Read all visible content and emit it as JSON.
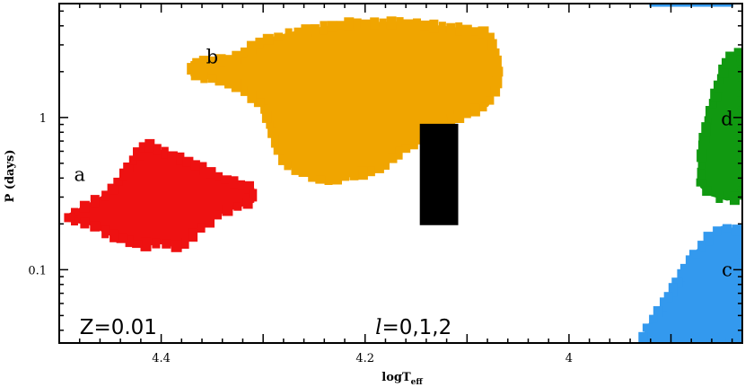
{
  "chart_data": {
    "type": "scatter",
    "title": "",
    "xlabel": "logT",
    "xlabel_sub": "eff",
    "ylabel": "P (days)",
    "x_reversed": true,
    "y_log": true,
    "xlim": [
      4.5,
      3.83
    ],
    "ylim": [
      0.033,
      5.6
    ],
    "x_ticks": [
      {
        "value": 4.4,
        "label": "4.4"
      },
      {
        "value": 4.2,
        "label": "4.2"
      },
      {
        "value": 4.0,
        "label": "4"
      }
    ],
    "y_ticks": [
      {
        "value": 0.1,
        "label": "0.1"
      },
      {
        "value": 1,
        "label": "1"
      }
    ],
    "series": [
      {
        "id": "a",
        "label": "a",
        "color": "#ee1111",
        "label_at": [
          4.48,
          0.42
        ],
        "polygon": [
          [
            4.49,
            0.23
          ],
          [
            4.47,
            0.27
          ],
          [
            4.45,
            0.32
          ],
          [
            4.43,
            0.5
          ],
          [
            4.415,
            0.67
          ],
          [
            4.4,
            0.6
          ],
          [
            4.37,
            0.5
          ],
          [
            4.34,
            0.4
          ],
          [
            4.31,
            0.34
          ],
          [
            4.31,
            0.28
          ],
          [
            4.34,
            0.24
          ],
          [
            4.365,
            0.18
          ],
          [
            4.38,
            0.14
          ],
          [
            4.4,
            0.15
          ],
          [
            4.42,
            0.145
          ],
          [
            4.45,
            0.17
          ],
          [
            4.47,
            0.2
          ],
          [
            4.49,
            0.21
          ]
        ]
      },
      {
        "id": "b",
        "label": "b",
        "color": "#f0a500",
        "label_at": [
          4.35,
          2.5
        ],
        "polygon": [
          [
            4.37,
            2.3
          ],
          [
            4.33,
            2.4
          ],
          [
            4.3,
            3.2
          ],
          [
            4.27,
            3.6
          ],
          [
            4.22,
            4.1
          ],
          [
            4.17,
            4.2
          ],
          [
            4.12,
            3.9
          ],
          [
            4.08,
            3.6
          ],
          [
            4.07,
            2.5
          ],
          [
            4.07,
            1.6
          ],
          [
            4.08,
            1.2
          ],
          [
            4.12,
            0.95
          ],
          [
            4.15,
            0.7
          ],
          [
            4.19,
            0.45
          ],
          [
            4.24,
            0.38
          ],
          [
            4.28,
            0.5
          ],
          [
            4.29,
            0.75
          ],
          [
            4.3,
            1.2
          ],
          [
            4.33,
            1.7
          ],
          [
            4.37,
            1.9
          ]
        ]
      },
      {
        "id": "black",
        "label": "",
        "color": "#000000",
        "label_at": null,
        "polygon": [
          [
            4.145,
            0.89
          ],
          [
            4.11,
            0.89
          ],
          [
            4.11,
            0.2
          ],
          [
            4.145,
            0.2
          ]
        ]
      },
      {
        "id": "c",
        "label": "c",
        "color": "#3399ee",
        "label_at": [
          3.845,
          0.1
        ],
        "polygon": [
          [
            3.93,
            0.033
          ],
          [
            3.83,
            0.033
          ],
          [
            3.83,
            0.18
          ],
          [
            3.85,
            0.19
          ],
          [
            3.86,
            0.17
          ],
          [
            3.88,
            0.12
          ],
          [
            3.9,
            0.07
          ],
          [
            3.92,
            0.045
          ]
        ]
      },
      {
        "id": "d",
        "label": "d",
        "color": "#119911",
        "label_at": [
          3.845,
          0.98
        ],
        "polygon": [
          [
            3.865,
            0.9
          ],
          [
            3.855,
            1.5
          ],
          [
            3.845,
            2.4
          ],
          [
            3.83,
            2.8
          ],
          [
            3.83,
            0.3
          ],
          [
            3.845,
            0.29
          ],
          [
            3.86,
            0.31
          ],
          [
            3.87,
            0.35
          ],
          [
            3.87,
            0.6
          ]
        ]
      },
      {
        "id": "c-top-edge",
        "label": "",
        "color": "#3399ee",
        "label_at": null,
        "polygon": [
          [
            3.92,
            5.6
          ],
          [
            3.84,
            5.6
          ],
          [
            3.84,
            5.45
          ],
          [
            3.92,
            5.45
          ]
        ]
      }
    ],
    "annotations": [
      {
        "id": "metallicity",
        "text": "Z=0.01",
        "at": [
          4.48,
          0.042
        ]
      },
      {
        "id": "degree",
        "prefix": "l",
        "text": "=0,1,2",
        "at": [
          4.19,
          0.042
        ]
      }
    ]
  }
}
